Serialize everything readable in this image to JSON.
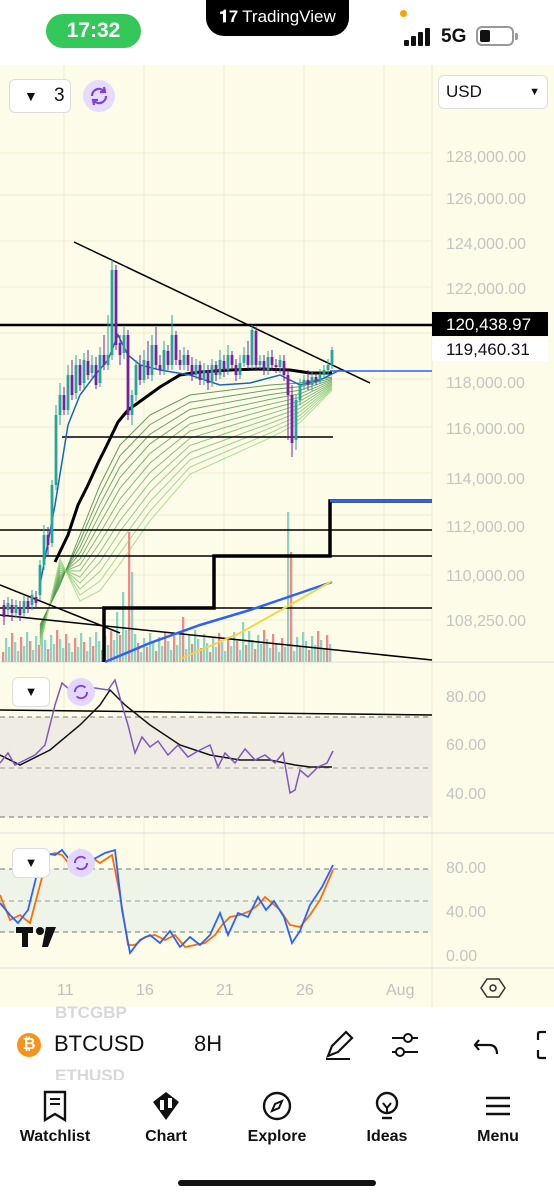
{
  "status": {
    "time": "17:32",
    "network": "5G",
    "island_app": "TradingView"
  },
  "toolbar": {
    "layout_count": "3",
    "currency": "USD"
  },
  "price_axis": {
    "labels": [
      "128,000.00",
      "126,000.00",
      "124,000.00",
      "122,000.00",
      "118,000.00",
      "116,000.00",
      "114,000.00",
      "112,000.00",
      "110,000.00",
      "108,250.00"
    ],
    "alert_price": "120,438.97",
    "last_price": "119,460.31"
  },
  "rsi_axis": {
    "labels": [
      "80.00",
      "60.00",
      "40.00"
    ]
  },
  "stoch_axis": {
    "labels": [
      "80.00",
      "40.00",
      "0.00"
    ]
  },
  "time_axis": {
    "labels": [
      "11",
      "16",
      "21",
      "26",
      "Aug"
    ]
  },
  "watchlist_ghost": {
    "above": "BTCGBP",
    "below": "ETHUSD"
  },
  "symbol": {
    "name": "BTCUSD",
    "interval": "8H"
  },
  "tabs": [
    "Watchlist",
    "Chart",
    "Explore",
    "Ideas",
    "Menu"
  ],
  "colors": {
    "chart_bg": "#fdfce8",
    "up_candle": "#26a69a",
    "down_candle": "#7b1fa2",
    "rsi_line": "#7e57c2",
    "stoch_k": "#2962ff",
    "stoch_d": "#ff6d00",
    "btc": "#f7931a",
    "status_clock": "#34c759"
  }
}
